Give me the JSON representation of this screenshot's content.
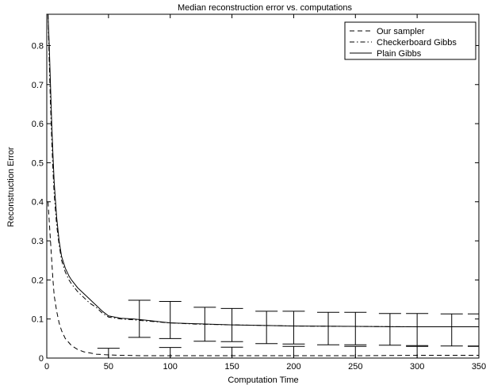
{
  "chart_data": {
    "type": "line",
    "title": "Median reconstruction error  vs. computations",
    "xlabel": "Computation Time",
    "ylabel": "Reconstruction Error",
    "xlim": [
      0,
      350
    ],
    "ylim": [
      0,
      0.88
    ],
    "xticks": [
      0,
      50,
      100,
      150,
      200,
      250,
      300,
      350
    ],
    "yticks": [
      0,
      0.1,
      0.2,
      0.3,
      0.4,
      0.5,
      0.6,
      0.7,
      0.8
    ],
    "xtick_labels": [
      "0",
      "50",
      "100",
      "150",
      "200",
      "250",
      "300",
      "350"
    ],
    "ytick_labels": [
      "0",
      "0.1",
      "0.2",
      "0.3",
      "0.4",
      "0.5",
      "0.6",
      "0.7",
      "0.8"
    ],
    "grid": false,
    "legend_position": "top-right",
    "series": [
      {
        "name": "Our sampler",
        "style": "dashed",
        "color": "#000000",
        "x": [
          1,
          2,
          3,
          4,
          5,
          6,
          8,
          10,
          12,
          15,
          20,
          25,
          30,
          40,
          50,
          60,
          80,
          100,
          150,
          200,
          250,
          300,
          350
        ],
        "y": [
          0.4,
          0.35,
          0.3,
          0.25,
          0.2,
          0.16,
          0.12,
          0.09,
          0.07,
          0.05,
          0.032,
          0.022,
          0.016,
          0.01,
          0.008,
          0.007,
          0.006,
          0.006,
          0.006,
          0.006,
          0.006,
          0.007,
          0.007
        ],
        "errorbars": [
          {
            "x": 50,
            "low": 0.0,
            "high": 0.025
          },
          {
            "x": 100,
            "low": 0.0,
            "high": 0.027
          },
          {
            "x": 150,
            "low": 0.0,
            "high": 0.028
          },
          {
            "x": 200,
            "low": 0.0,
            "high": 0.03
          },
          {
            "x": 250,
            "low": 0.0,
            "high": 0.03
          },
          {
            "x": 300,
            "low": 0.0,
            "high": 0.03
          },
          {
            "x": 350,
            "low": 0.0,
            "high": 0.03
          }
        ]
      },
      {
        "name": "Checkerboard Gibbs",
        "style": "dashdot",
        "color": "#000000",
        "x": [
          1,
          2,
          3,
          4,
          5,
          6,
          8,
          10,
          12,
          15,
          18,
          20,
          25,
          30,
          35,
          40,
          45,
          50,
          60,
          70,
          80,
          100,
          120,
          150,
          200,
          250,
          300,
          350
        ],
        "y": [
          0.88,
          0.76,
          0.65,
          0.56,
          0.48,
          0.42,
          0.34,
          0.29,
          0.25,
          0.22,
          0.2,
          0.19,
          0.17,
          0.155,
          0.14,
          0.13,
          0.115,
          0.105,
          0.1,
          0.098,
          0.095,
          0.09,
          0.087,
          0.085,
          0.082,
          0.081,
          0.08,
          0.08
        ],
        "errorbars": []
      },
      {
        "name": "Plain Gibbs",
        "style": "solid",
        "color": "#000000",
        "x": [
          1,
          2,
          3,
          4,
          5,
          6,
          8,
          10,
          12,
          15,
          18,
          20,
          25,
          30,
          35,
          40,
          45,
          50,
          60,
          70,
          80,
          100,
          120,
          150,
          200,
          250,
          300,
          350
        ],
        "y": [
          0.88,
          0.8,
          0.7,
          0.6,
          0.52,
          0.45,
          0.36,
          0.3,
          0.26,
          0.23,
          0.21,
          0.2,
          0.18,
          0.165,
          0.15,
          0.135,
          0.12,
          0.108,
          0.102,
          0.1,
          0.097,
          0.09,
          0.088,
          0.085,
          0.082,
          0.081,
          0.08,
          0.08
        ],
        "errorbars": [
          {
            "x": 75,
            "low": 0.053,
            "high": 0.148
          },
          {
            "x": 100,
            "low": 0.05,
            "high": 0.145
          },
          {
            "x": 128,
            "low": 0.043,
            "high": 0.13
          },
          {
            "x": 150,
            "low": 0.042,
            "high": 0.127
          },
          {
            "x": 178,
            "low": 0.037,
            "high": 0.12
          },
          {
            "x": 200,
            "low": 0.036,
            "high": 0.12
          },
          {
            "x": 228,
            "low": 0.034,
            "high": 0.117
          },
          {
            "x": 250,
            "low": 0.034,
            "high": 0.117
          },
          {
            "x": 278,
            "low": 0.033,
            "high": 0.114
          },
          {
            "x": 300,
            "low": 0.032,
            "high": 0.114
          },
          {
            "x": 328,
            "low": 0.031,
            "high": 0.113
          },
          {
            "x": 350,
            "low": 0.031,
            "high": 0.113
          }
        ]
      }
    ]
  }
}
